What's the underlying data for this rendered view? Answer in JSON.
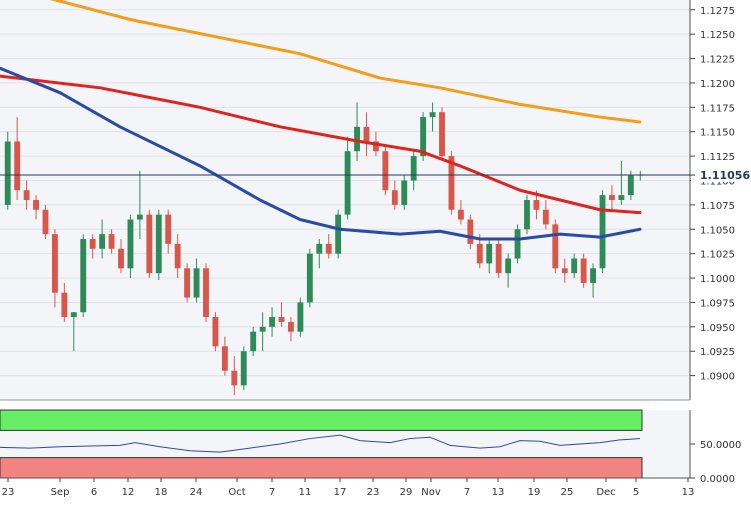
{
  "chart_data": {
    "type": "candlestick",
    "instrument_last_price": "1.11056",
    "y_axis": {
      "ticks": [
        "1.1275",
        "1.1250",
        "1.1225",
        "1.1200",
        "1.1175",
        "1.1150",
        "1.1125",
        "1.1100",
        "1.1075",
        "1.1050",
        "1.1025",
        "1.1000",
        "1.0975",
        "1.0950",
        "1.0925",
        "1.0900"
      ],
      "range": [
        1.0875,
        1.1285
      ]
    },
    "x_axis": {
      "ticks": [
        "23",
        "Sep",
        "6",
        "12",
        "18",
        "24",
        "Oct",
        "7",
        "11",
        "17",
        "23",
        "29",
        "Nov",
        "7",
        "13",
        "19",
        "25",
        "Dec",
        "5",
        "13"
      ]
    },
    "current_price_line": 1.11056,
    "candles": [
      [
        1.1075,
        1.115,
        1.107,
        1.114
      ],
      [
        1.114,
        1.1165,
        1.108,
        1.109
      ],
      [
        1.109,
        1.11,
        1.107,
        1.108
      ],
      [
        1.108,
        1.1085,
        1.106,
        1.107
      ],
      [
        1.107,
        1.1075,
        1.104,
        1.1045
      ],
      [
        1.1045,
        1.105,
        1.097,
        1.0985
      ],
      [
        1.0985,
        1.0995,
        1.0955,
        1.096
      ],
      [
        1.096,
        1.0965,
        1.0925,
        1.0965
      ],
      [
        1.0965,
        1.1045,
        1.096,
        1.104
      ],
      [
        1.104,
        1.1045,
        1.102,
        1.103
      ],
      [
        1.103,
        1.106,
        1.102,
        1.1045
      ],
      [
        1.1045,
        1.105,
        1.1025,
        1.103
      ],
      [
        1.103,
        1.104,
        1.1005,
        1.101
      ],
      [
        1.101,
        1.1065,
        1.1,
        1.106
      ],
      [
        1.106,
        1.111,
        1.104,
        1.1065
      ],
      [
        1.1065,
        1.107,
        1.1,
        1.1005
      ],
      [
        1.1005,
        1.107,
        1.0998,
        1.1065
      ],
      [
        1.1065,
        1.107,
        1.1025,
        1.1035
      ],
      [
        1.1035,
        1.1045,
        1.1,
        1.101
      ],
      [
        1.101,
        1.1015,
        1.0975,
        1.098
      ],
      [
        1.098,
        1.102,
        1.0975,
        1.101
      ],
      [
        1.101,
        1.1015,
        1.0955,
        1.096
      ],
      [
        1.096,
        1.0965,
        1.0925,
        1.093
      ],
      [
        1.093,
        1.094,
        1.09,
        1.0905
      ],
      [
        1.0905,
        1.092,
        1.088,
        1.089
      ],
      [
        1.089,
        1.093,
        1.0885,
        1.0925
      ],
      [
        1.0925,
        1.095,
        1.092,
        1.0945
      ],
      [
        1.0945,
        1.0965,
        1.0925,
        1.095
      ],
      [
        1.095,
        1.097,
        1.094,
        1.096
      ],
      [
        1.096,
        1.0975,
        1.095,
        1.0955
      ],
      [
        1.0955,
        1.096,
        1.0935,
        1.0945
      ],
      [
        1.0945,
        1.098,
        1.094,
        1.0975
      ],
      [
        1.0975,
        1.103,
        1.097,
        1.1025
      ],
      [
        1.1025,
        1.104,
        1.101,
        1.1035
      ],
      [
        1.1035,
        1.1045,
        1.102,
        1.1025
      ],
      [
        1.1025,
        1.107,
        1.102,
        1.1065
      ],
      [
        1.1065,
        1.1145,
        1.106,
        1.113
      ],
      [
        1.113,
        1.118,
        1.112,
        1.1155
      ],
      [
        1.1155,
        1.117,
        1.1125,
        1.114
      ],
      [
        1.114,
        1.115,
        1.1125,
        1.113
      ],
      [
        1.113,
        1.1135,
        1.1085,
        1.109
      ],
      [
        1.109,
        1.11,
        1.107,
        1.1075
      ],
      [
        1.1075,
        1.1105,
        1.107,
        1.11
      ],
      [
        1.11,
        1.113,
        1.109,
        1.1125
      ],
      [
        1.1125,
        1.117,
        1.112,
        1.1165
      ],
      [
        1.1165,
        1.118,
        1.115,
        1.117
      ],
      [
        1.117,
        1.1175,
        1.112,
        1.1125
      ],
      [
        1.1125,
        1.113,
        1.1065,
        1.107
      ],
      [
        1.107,
        1.108,
        1.1055,
        1.106
      ],
      [
        1.106,
        1.1065,
        1.103,
        1.1035
      ],
      [
        1.1035,
        1.1045,
        1.101,
        1.1015
      ],
      [
        1.1015,
        1.104,
        1.1005,
        1.1035
      ],
      [
        1.1035,
        1.104,
        1.1,
        1.1005
      ],
      [
        1.1005,
        1.1025,
        1.099,
        1.102
      ],
      [
        1.102,
        1.1055,
        1.1015,
        1.105
      ],
      [
        1.105,
        1.1085,
        1.1045,
        1.108
      ],
      [
        1.108,
        1.109,
        1.106,
        1.107
      ],
      [
        1.107,
        1.108,
        1.105,
        1.1055
      ],
      [
        1.1055,
        1.106,
        1.1005,
        1.101
      ],
      [
        1.101,
        1.102,
        1.0995,
        1.1005
      ],
      [
        1.1005,
        1.1025,
        1.1,
        1.102
      ],
      [
        1.102,
        1.1025,
        1.099,
        1.0995
      ],
      [
        1.0995,
        1.1015,
        1.098,
        1.101
      ],
      [
        1.101,
        1.109,
        1.1005,
        1.1085
      ],
      [
        1.1085,
        1.1095,
        1.107,
        1.108
      ],
      [
        1.108,
        1.112,
        1.1075,
        1.1085
      ],
      [
        1.1085,
        1.111,
        1.108,
        1.1105
      ],
      [
        1.1105,
        1.111,
        1.11,
        1.1106
      ]
    ],
    "moving_averages": [
      {
        "color": "#f59c1a",
        "values": [
          [
            0,
            1.13
          ],
          [
            130,
            1.1265
          ],
          [
            300,
            1.123
          ],
          [
            380,
            1.1205
          ],
          [
            440,
            1.1195
          ],
          [
            520,
            1.1178
          ],
          [
            600,
            1.1165
          ],
          [
            640,
            1.116
          ]
        ]
      },
      {
        "color": "#e0231f",
        "values": [
          [
            0,
            1.1207
          ],
          [
            100,
            1.1195
          ],
          [
            200,
            1.1175
          ],
          [
            280,
            1.1155
          ],
          [
            360,
            1.114
          ],
          [
            420,
            1.113
          ],
          [
            460,
            1.1115
          ],
          [
            520,
            1.109
          ],
          [
            600,
            1.107
          ],
          [
            640,
            1.1067
          ]
        ]
      },
      {
        "color": "#2a4aa8",
        "values": [
          [
            0,
            1.1215
          ],
          [
            60,
            1.119
          ],
          [
            120,
            1.1155
          ],
          [
            200,
            1.1115
          ],
          [
            260,
            1.108
          ],
          [
            300,
            1.106
          ],
          [
            340,
            1.105
          ],
          [
            400,
            1.1045
          ],
          [
            440,
            1.1048
          ],
          [
            480,
            1.104
          ],
          [
            520,
            1.104
          ],
          [
            560,
            1.1045
          ],
          [
            600,
            1.1042
          ],
          [
            640,
            1.105
          ]
        ]
      }
    ],
    "oscillator": {
      "y_ticks": [
        "50.0000",
        "0.0000"
      ],
      "range": [
        0,
        100
      ],
      "overbought": 70,
      "oversold": 30,
      "line_color": "#2a4aa8",
      "values": [
        [
          0,
          45
        ],
        [
          30,
          44
        ],
        [
          60,
          46
        ],
        [
          90,
          47
        ],
        [
          120,
          48
        ],
        [
          135,
          52
        ],
        [
          160,
          46
        ],
        [
          190,
          40
        ],
        [
          220,
          38
        ],
        [
          250,
          44
        ],
        [
          280,
          50
        ],
        [
          310,
          58
        ],
        [
          340,
          63
        ],
        [
          360,
          55
        ],
        [
          390,
          52
        ],
        [
          410,
          58
        ],
        [
          430,
          60
        ],
        [
          450,
          48
        ],
        [
          480,
          44
        ],
        [
          500,
          46
        ],
        [
          520,
          55
        ],
        [
          540,
          54
        ],
        [
          560,
          48
        ],
        [
          580,
          50
        ],
        [
          600,
          52
        ],
        [
          620,
          56
        ],
        [
          640,
          58
        ]
      ]
    }
  }
}
